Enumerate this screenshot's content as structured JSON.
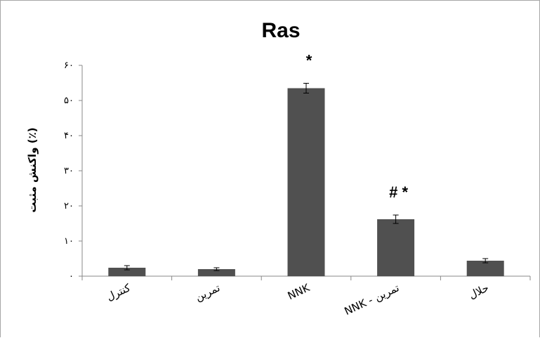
{
  "chart_data": {
    "type": "bar",
    "title": "Ras",
    "ylabel": "واکنش مثبت (٪)",
    "xlabel": "",
    "categories": [
      "کنترل",
      "تمرین",
      "NNK",
      "NNK - تمرین",
      "حلال"
    ],
    "values": [
      2.4,
      2.0,
      53.5,
      16.2,
      4.4
    ],
    "errors": [
      0.6,
      0.4,
      1.4,
      1.2,
      0.6
    ],
    "annotations": [
      "",
      "",
      "*",
      "# *",
      ""
    ],
    "ylim": [
      0,
      60
    ],
    "yticks": [
      0,
      10,
      20,
      30,
      40,
      50,
      60
    ],
    "ytick_labels": [
      "۰",
      "۱۰",
      "۲۰",
      "۳۰",
      "۴۰",
      "۵۰",
      "۶۰"
    ],
    "grid": false,
    "legend": "none",
    "bar_color": "#505050"
  }
}
